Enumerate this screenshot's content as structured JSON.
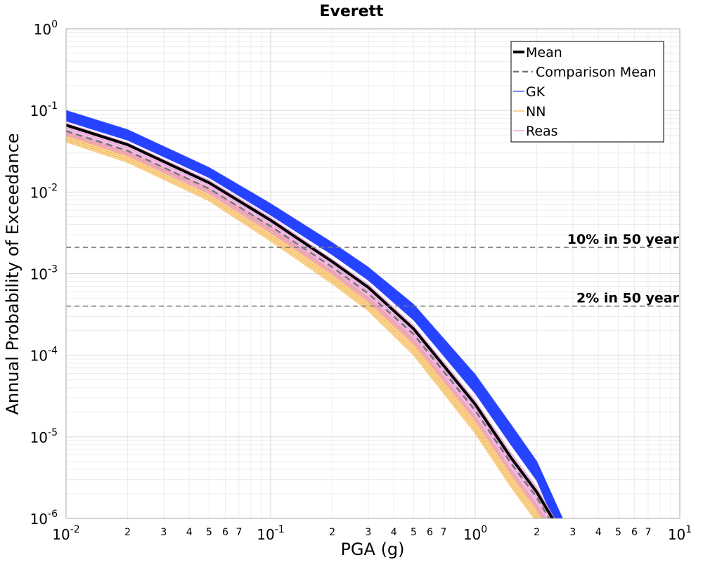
{
  "chart_data": {
    "type": "line",
    "title": "Everett",
    "xlabel": "PGA (g)",
    "ylabel": "Annual Probability of Exceedance",
    "x_scale": "log",
    "y_scale": "log",
    "xlim": [
      0.01,
      10
    ],
    "ylim": [
      1e-06,
      1
    ],
    "grid": true,
    "legend_position": "top-right",
    "x_major_ticks": [
      {
        "base": "10",
        "exp": "-2"
      },
      {
        "base": "10",
        "exp": "-1"
      },
      {
        "base": "10",
        "exp": "0"
      },
      {
        "base": "10",
        "exp": "1"
      }
    ],
    "y_major_ticks": [
      {
        "base": "10",
        "exp": "0"
      },
      {
        "base": "10",
        "exp": "-1"
      },
      {
        "base": "10",
        "exp": "-2"
      },
      {
        "base": "10",
        "exp": "-3"
      },
      {
        "base": "10",
        "exp": "-4"
      },
      {
        "base": "10",
        "exp": "-5"
      },
      {
        "base": "10",
        "exp": "-6"
      }
    ],
    "x_minor_tick_labels": [
      "2",
      "3",
      "4",
      "5",
      "6",
      "7"
    ],
    "reference_lines": [
      {
        "label": "10% in 50 year",
        "y": 0.0021,
        "color": "#777777"
      },
      {
        "label": "2% in 50 year",
        "y": 0.0004,
        "color": "#777777"
      }
    ],
    "series": [
      {
        "name": "Mean",
        "color": "#000000",
        "style": "solid",
        "x": [
          0.01,
          0.02,
          0.05,
          0.1,
          0.2,
          0.3,
          0.5,
          1.0,
          1.5,
          2.0,
          2.5
        ],
        "y": [
          0.066,
          0.038,
          0.013,
          0.0045,
          0.0014,
          0.00068,
          0.00021,
          2.5e-05,
          5.5e-06,
          2.1e-06,
          8.2e-07
        ]
      },
      {
        "name": "Comparison Mean",
        "color": "#777777",
        "style": "dashed",
        "x": [
          0.01,
          0.02,
          0.05,
          0.1,
          0.2,
          0.3,
          0.5,
          1.0,
          1.5,
          2.0,
          2.5
        ],
        "y": [
          0.056,
          0.032,
          0.011,
          0.0038,
          0.0012,
          0.00057,
          0.00018,
          2.1e-05,
          4.7e-06,
          1.8e-06,
          7e-07
        ]
      },
      {
        "name": "GK",
        "color": "#1f3cff",
        "style": "band",
        "x": [
          0.01,
          0.02,
          0.05,
          0.1,
          0.2,
          0.3,
          0.5,
          1.0,
          1.5,
          2.0,
          2.7
        ],
        "y_upper": [
          0.1,
          0.058,
          0.02,
          0.0072,
          0.0024,
          0.0012,
          0.00042,
          5.8e-05,
          1.4e-05,
          5e-06,
          9.5e-07
        ],
        "y_lower": [
          0.074,
          0.043,
          0.015,
          0.0052,
          0.0017,
          0.00083,
          0.00027,
          3.4e-05,
          7.9e-06,
          2.9e-06,
          5e-07
        ]
      },
      {
        "name": "NN",
        "color": "#f5b54a",
        "style": "band",
        "x": [
          0.01,
          0.02,
          0.05,
          0.1,
          0.2,
          0.3,
          0.5,
          1.0,
          1.5,
          2.0,
          2.5
        ],
        "y_upper": [
          0.055,
          0.031,
          0.011,
          0.0037,
          0.0011,
          0.00052,
          0.00016,
          1.8e-05,
          4e-06,
          1.5e-06,
          6e-07
        ],
        "y_lower": [
          0.041,
          0.023,
          0.0078,
          0.0025,
          0.00075,
          0.00035,
          0.0001,
          1.1e-05,
          2.4e-06,
          9e-07,
          3.5e-07
        ]
      },
      {
        "name": "Reas",
        "color": "#e994d6",
        "style": "band",
        "x": [
          0.01,
          0.02,
          0.05,
          0.1,
          0.2,
          0.3,
          0.5,
          1.0,
          1.5,
          2.0,
          2.5
        ],
        "y_upper": [
          0.07,
          0.04,
          0.014,
          0.0049,
          0.0015,
          0.00074,
          0.00023,
          2.8e-05,
          6.3e-06,
          2.4e-06,
          9e-07
        ],
        "y_lower": [
          0.05,
          0.028,
          0.0096,
          0.0032,
          0.00099,
          0.00046,
          0.00014,
          1.6e-05,
          3.5e-06,
          1.3e-06,
          5e-07
        ]
      }
    ]
  }
}
